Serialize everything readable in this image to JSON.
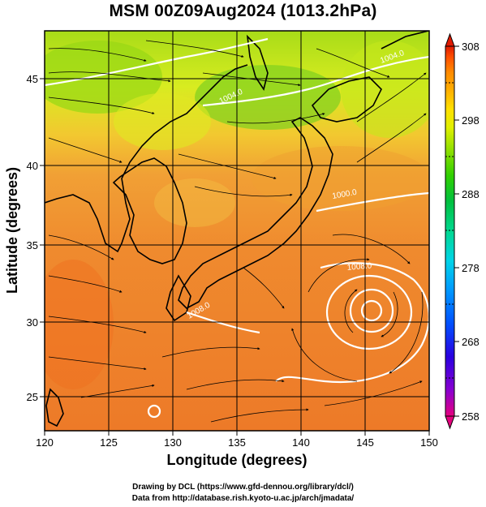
{
  "title": "MSM 00Z09Aug2024 (1013.2hPa)",
  "axes": {
    "xlabel": "Longitude (degrees)",
    "ylabel": "Latitude  (degrees)",
    "xticks": [
      "120",
      "125",
      "130",
      "135",
      "140",
      "145",
      "150"
    ],
    "yticks": [
      "25",
      "30",
      "35",
      "40",
      "45"
    ],
    "xlim": [
      120,
      150
    ],
    "ylim": [
      22.4,
      47.6
    ]
  },
  "colorbar": {
    "ticks": [
      "308",
      "298",
      "288",
      "278",
      "268",
      "258"
    ],
    "range": [
      258,
      308
    ],
    "colors": [
      "#e6007e",
      "#8a00d0",
      "#2a00e0",
      "#0050ff",
      "#0098ff",
      "#00d4e8",
      "#00d890",
      "#00c040",
      "#30d000",
      "#90e000",
      "#e0f000",
      "#ffe000",
      "#ffb000",
      "#ff8a00",
      "#ff5000",
      "#e01a00"
    ]
  },
  "contours": {
    "labels": [
      "1004.0",
      "1004.0",
      "1008.0",
      "1000.0",
      "1008.0"
    ],
    "color": "#ffffff"
  },
  "colors": {
    "land_outline": "#000000",
    "streamline": "#000000",
    "warm": "#f07020",
    "cool": "#b8e010"
  },
  "credits": {
    "line1": "Drawing by DCL (https://www.gfd-dennou.org/library/dcl/)",
    "line2": "Data from http://database.rish.kyoto-u.ac.jp/arch/jmadata/"
  }
}
